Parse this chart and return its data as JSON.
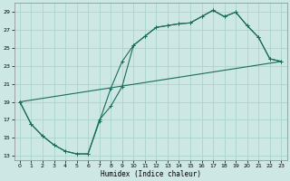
{
  "xlabel": "Humidex (Indice chaleur)",
  "bg_color": "#cde8e4",
  "grid_color": "#aad4ce",
  "line_color": "#1a6b5a",
  "xlim": [
    -0.5,
    23.5
  ],
  "ylim": [
    12.5,
    30
  ],
  "xticks": [
    0,
    1,
    2,
    3,
    4,
    5,
    6,
    7,
    8,
    9,
    10,
    11,
    12,
    13,
    14,
    15,
    16,
    17,
    18,
    19,
    20,
    21,
    22,
    23
  ],
  "yticks": [
    13,
    15,
    17,
    19,
    21,
    23,
    25,
    27,
    29
  ],
  "line1_x": [
    0,
    1,
    2,
    3,
    4,
    5,
    6,
    7,
    8,
    9,
    10,
    11,
    12,
    13,
    14,
    15,
    16,
    17,
    18,
    19,
    20,
    21,
    22,
    23
  ],
  "line1_y": [
    19,
    16.5,
    15.2,
    14.2,
    13.5,
    13.2,
    13.2,
    17.0,
    18.5,
    20.7,
    25.3,
    26.3,
    27.3,
    27.5,
    27.7,
    27.8,
    28.5,
    29.2,
    28.5,
    29.0,
    27.5,
    26.2,
    23.8,
    23.5
  ],
  "line2_x": [
    0,
    1,
    2,
    3,
    4,
    5,
    6,
    7,
    8,
    9,
    10,
    11,
    12,
    13,
    14,
    15,
    16,
    17,
    18,
    19,
    20,
    21,
    22,
    23
  ],
  "line2_y": [
    19,
    16.5,
    15.2,
    14.2,
    13.5,
    13.2,
    13.2,
    16.8,
    20.5,
    23.5,
    25.3,
    26.3,
    27.3,
    27.5,
    27.7,
    27.8,
    28.5,
    29.2,
    28.5,
    29.0,
    27.5,
    26.2,
    23.8,
    23.5
  ],
  "line3_x": [
    0,
    23
  ],
  "line3_y": [
    19,
    23.5
  ]
}
